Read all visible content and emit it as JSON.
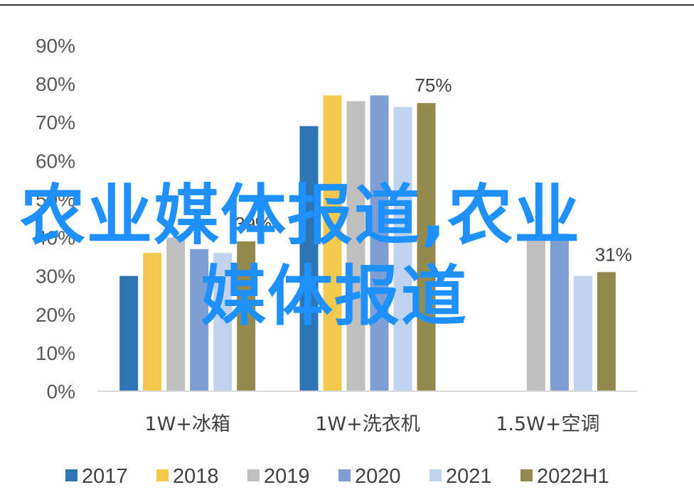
{
  "watermark": {
    "line1": "农业媒体报道,农业",
    "line2": "媒体报道"
  },
  "chart_data": {
    "type": "bar",
    "title": "",
    "xlabel": "",
    "ylabel": "",
    "ylim": [
      0,
      90
    ],
    "yticks": [
      "0%",
      "10%",
      "20%",
      "30%",
      "40%",
      "50%",
      "60%",
      "70%",
      "80%",
      "90%"
    ],
    "grid": false,
    "legend_position": "bottom",
    "categories": [
      "1W+冰箱",
      "1W+洗衣机",
      "1.5W+空调"
    ],
    "series": [
      {
        "name": "2017",
        "color": "#2e75b6",
        "values": [
          30,
          69,
          null
        ]
      },
      {
        "name": "2018",
        "color": "#f2c94c",
        "values": [
          36,
          77,
          null
        ]
      },
      {
        "name": "2019",
        "color": "#bfbfbf",
        "values": [
          40,
          75.5,
          40
        ]
      },
      {
        "name": "2020",
        "color": "#7f9fd4",
        "values": [
          37,
          77,
          41
        ]
      },
      {
        "name": "2021",
        "color": "#bfd3ef",
        "values": [
          36,
          74,
          30
        ]
      },
      {
        "name": "2022H1",
        "color": "#948a4e",
        "values": [
          39,
          75,
          31
        ]
      }
    ],
    "data_labels": [
      {
        "category": 0,
        "series": 5,
        "text": "39%"
      },
      {
        "category": 1,
        "series": 5,
        "text": "75%"
      },
      {
        "category": 2,
        "series": 5,
        "text": "31%"
      }
    ]
  }
}
